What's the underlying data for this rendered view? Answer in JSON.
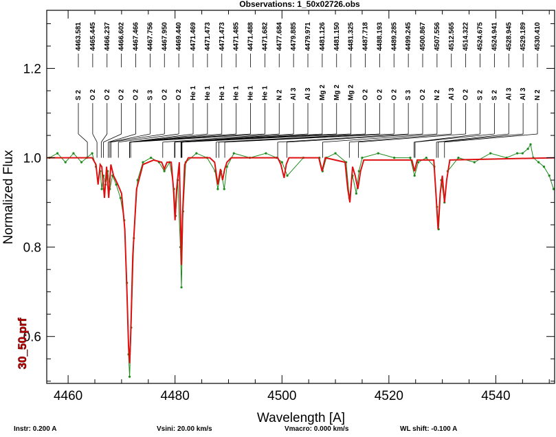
{
  "title": "Observations: 1_50x02726.obs",
  "side_label": "30_50.prf",
  "footer": {
    "instr": "Instr: 0.200 A",
    "vsini": "Vsini:   20.00 km/s",
    "vmacro": "Vmacro:   0.000 km/s",
    "wlshift": "WL shift:   -0.100 A"
  },
  "colors": {
    "observed": "#1a8a1a",
    "model": "#dd1111",
    "axes": "#000000"
  },
  "chart_data": {
    "type": "line",
    "title": "Observations: 1_50x02726.obs",
    "xlabel": "Wavelength [A]",
    "ylabel": "Normalized Flux",
    "xlim": [
      4456,
      4551
    ],
    "ylim": [
      0.495,
      1.33
    ],
    "xticks": [
      4460,
      4480,
      4500,
      4520,
      4540
    ],
    "yticks": [
      0.6,
      0.8,
      1.0,
      1.2
    ],
    "ytick_labels": [
      "0.6",
      "0.8",
      "1.0",
      "1.2"
    ],
    "grid": false,
    "series": [
      {
        "role": "observed",
        "style": "green dots with connecting line",
        "x": [
          4456.5,
          4458.0,
          4459.5,
          4461.0,
          4462.5,
          4463.5,
          4464.5,
          4465.2,
          4465.6,
          4466.0,
          4466.3,
          4466.6,
          4467.0,
          4467.4,
          4467.8,
          4468.3,
          4469.0,
          4469.8,
          4470.5,
          4471.0,
          4471.3,
          4471.5,
          4471.8,
          4472.3,
          4473.0,
          4474.0,
          4475.5,
          4477.0,
          4478.0,
          4479.0,
          4479.8,
          4480.1,
          4480.5,
          4481.0,
          4481.2,
          4481.5,
          4482.0,
          4484.0,
          4486.0,
          4487.5,
          4488.0,
          4488.6,
          4489.2,
          4489.7,
          4491.0,
          4494.0,
          4497.0,
          4499.0,
          4500.0,
          4501.0,
          4504.0,
          4507.0,
          4507.6,
          4508.3,
          4510.0,
          4512.0,
          4512.6,
          4513.2,
          4513.9,
          4514.4,
          4515.0,
          4518.0,
          4521.0,
          4524.0,
          4524.8,
          4525.5,
          4527.0,
          4528.5,
          4529.0,
          4529.3,
          4529.8,
          4530.4,
          4531.0,
          4533.0,
          4536.0,
          4539.0,
          4542.0,
          4544.0,
          4545.0,
          4546.0,
          4546.5,
          4547.0,
          4548.0,
          4549.0,
          4550.0,
          4550.8
        ],
        "y": [
          1.0,
          1.01,
          0.99,
          1.01,
          0.99,
          1.0,
          1.01,
          0.98,
          0.95,
          0.97,
          0.93,
          0.96,
          0.94,
          0.97,
          0.93,
          0.96,
          0.94,
          0.91,
          0.86,
          0.72,
          0.56,
          0.51,
          0.62,
          0.82,
          0.95,
          0.99,
          1.0,
          0.99,
          0.97,
          0.99,
          0.93,
          0.87,
          0.95,
          0.8,
          0.71,
          0.88,
          0.99,
          1.01,
          1.0,
          0.97,
          0.93,
          0.97,
          0.93,
          0.98,
          1.01,
          1.0,
          1.01,
          1.0,
          0.99,
          0.96,
          1.0,
          1.0,
          0.97,
          1.0,
          1.01,
          0.99,
          0.91,
          0.96,
          0.92,
          0.97,
          1.0,
          1.01,
          1.0,
          1.0,
          0.96,
          0.99,
          1.0,
          0.98,
          0.89,
          0.84,
          0.95,
          0.9,
          0.97,
          1.0,
          0.99,
          1.01,
          1.0,
          1.01,
          1.01,
          1.02,
          1.03,
          1.0,
          0.99,
          0.98,
          0.96,
          0.93
        ]
      },
      {
        "role": "model",
        "style": "red solid line",
        "x": [
          4456.0,
          4464.5,
          4465.2,
          4465.6,
          4466.0,
          4466.3,
          4466.8,
          4467.2,
          4467.6,
          4468.0,
          4468.5,
          4469.3,
          4470.0,
          4470.6,
          4471.0,
          4471.3,
          4471.5,
          4471.7,
          4472.1,
          4472.8,
          4474.0,
          4476.0,
          4477.5,
          4478.0,
          4478.5,
          4479.3,
          4479.7,
          4480.0,
          4480.3,
          4480.8,
          4481.0,
          4481.2,
          4481.4,
          4481.8,
          4482.5,
          4486.5,
          4487.4,
          4488.0,
          4488.5,
          4488.9,
          4489.3,
          4489.7,
          4490.5,
          4499.2,
          4499.8,
          4500.4,
          4500.8,
          4501.3,
          4501.8,
          4506.9,
          4507.5,
          4508.1,
          4511.8,
          4512.3,
          4512.7,
          4513.2,
          4513.7,
          4514.2,
          4514.7,
          4515.3,
          4524.3,
          4524.8,
          4525.3,
          4528.4,
          4528.8,
          4529.2,
          4529.6,
          4530.0,
          4530.4,
          4530.8,
          4531.4,
          4551.0
        ],
        "y": [
          1.0,
          1.0,
          0.985,
          0.94,
          0.985,
          0.98,
          0.91,
          0.98,
          0.91,
          0.985,
          0.96,
          0.94,
          0.92,
          0.84,
          0.7,
          0.58,
          0.54,
          0.6,
          0.78,
          0.93,
          0.985,
          0.995,
          0.99,
          0.975,
          0.99,
          0.99,
          0.93,
          0.86,
          0.93,
          0.99,
          0.88,
          0.76,
          0.87,
          0.985,
          1.0,
          1.0,
          0.99,
          0.94,
          0.975,
          0.95,
          0.975,
          0.99,
          1.0,
          1.0,
          0.985,
          0.955,
          0.985,
          1.0,
          1.0,
          1.0,
          0.97,
          1.0,
          0.99,
          0.93,
          0.9,
          0.98,
          0.96,
          0.93,
          0.97,
          0.995,
          0.995,
          0.97,
          0.995,
          0.995,
          0.92,
          0.84,
          0.92,
          0.96,
          0.9,
          0.95,
          0.995,
          1.0
        ]
      }
    ],
    "line_ids": [
      {
        "wl": "4463.581",
        "ion": "S 2",
        "target": 4463.6
      },
      {
        "wl": "4465.445",
        "ion": "O 2",
        "target": 4465.4
      },
      {
        "wl": "4466.237",
        "ion": "O 2",
        "target": 4466.2
      },
      {
        "wl": "4466.602",
        "ion": "O 2",
        "target": 4466.6
      },
      {
        "wl": "4467.466",
        "ion": "O 2",
        "target": 4467.5
      },
      {
        "wl": "4467.756",
        "ion": "S 3",
        "target": 4467.8
      },
      {
        "wl": "4467.950",
        "ion": "O 2",
        "target": 4468.0
      },
      {
        "wl": "4469.440",
        "ion": "O 2",
        "target": 4469.4
      },
      {
        "wl": "4471.469",
        "ion": "He 1",
        "target": 4471.5
      },
      {
        "wl": "4471.473",
        "ion": "He 1",
        "target": 4471.5
      },
      {
        "wl": "4471.473",
        "ion": "He 1",
        "target": 4471.5
      },
      {
        "wl": "4471.485",
        "ion": "He 1",
        "target": 4471.5
      },
      {
        "wl": "4471.488",
        "ion": "He 1",
        "target": 4471.5
      },
      {
        "wl": "4471.682",
        "ion": "He 1",
        "target": 4471.7
      },
      {
        "wl": "4477.684",
        "ion": "N 2",
        "target": 4477.7
      },
      {
        "wl": "4479.885",
        "ion": "Al 3",
        "target": 4479.9
      },
      {
        "wl": "4479.971",
        "ion": "Al 3",
        "target": 4480.0
      },
      {
        "wl": "4481.126",
        "ion": "Mg 2",
        "target": 4481.1
      },
      {
        "wl": "4481.150",
        "ion": "Mg 2",
        "target": 4481.2
      },
      {
        "wl": "4481.325",
        "ion": "Mg 2",
        "target": 4481.3
      },
      {
        "wl": "4487.718",
        "ion": "O 2",
        "target": 4487.7
      },
      {
        "wl": "4488.193",
        "ion": "O 2",
        "target": 4488.2
      },
      {
        "wl": "4489.285",
        "ion": "O 2",
        "target": 4489.3
      },
      {
        "wl": "4499.245",
        "ion": "S 3",
        "target": 4499.2
      },
      {
        "wl": "4500.867",
        "ion": "O 2",
        "target": 4500.9
      },
      {
        "wl": "4507.556",
        "ion": "N 2",
        "target": 4507.6
      },
      {
        "wl": "4512.565",
        "ion": "Al 3",
        "target": 4512.6
      },
      {
        "wl": "4514.322",
        "ion": "O 2",
        "target": 4514.3
      },
      {
        "wl": "4524.675",
        "ion": "S 2",
        "target": 4524.7
      },
      {
        "wl": "4524.941",
        "ion": "S 2",
        "target": 4524.9
      },
      {
        "wl": "4528.945",
        "ion": "Al 3",
        "target": 4528.9
      },
      {
        "wl": "4529.189",
        "ion": "Al 3",
        "target": 4529.2
      },
      {
        "wl": "4530.410",
        "ion": "N 2",
        "target": 4530.4
      }
    ]
  }
}
